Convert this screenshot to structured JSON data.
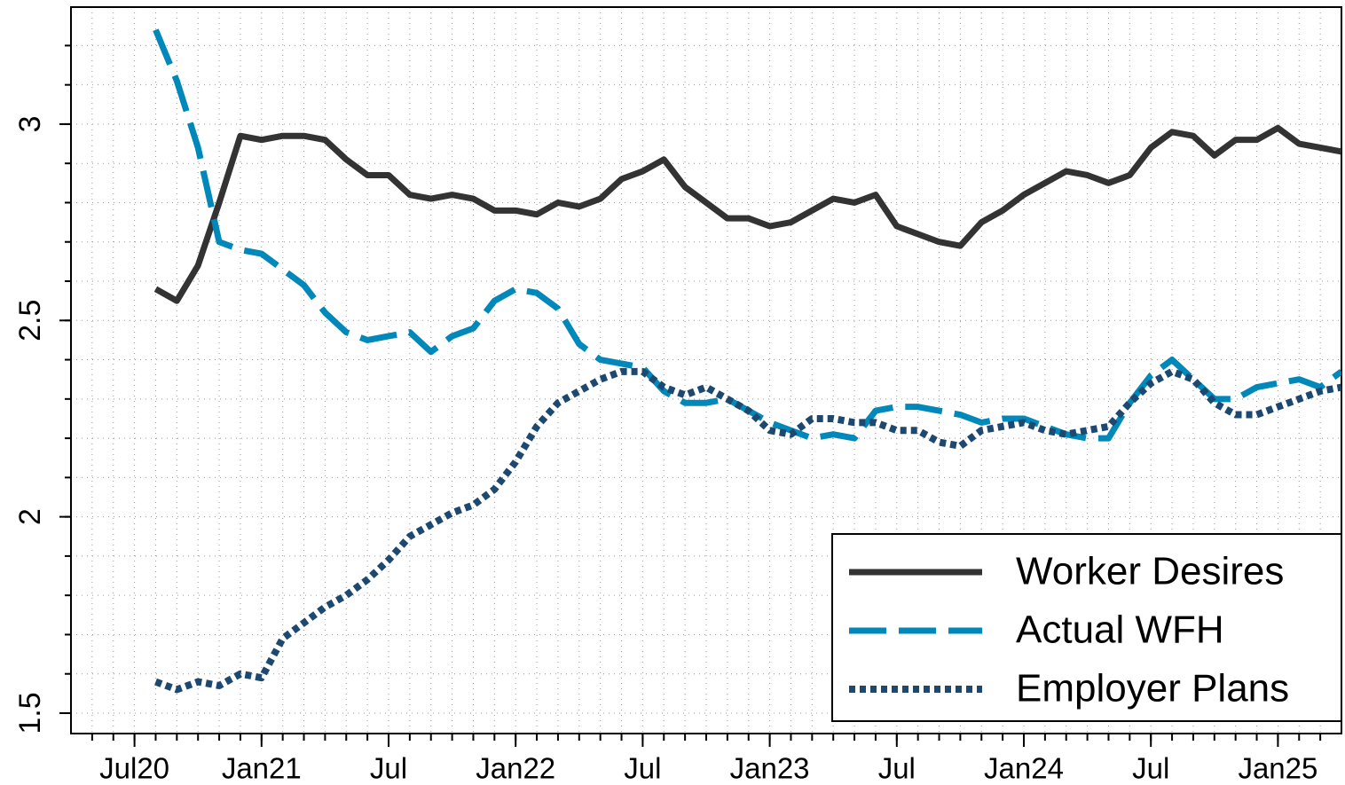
{
  "chart_data": {
    "type": "line",
    "x": [
      "2020-08",
      "2020-09",
      "2020-10",
      "2020-11",
      "2020-12",
      "2021-01",
      "2021-02",
      "2021-03",
      "2021-04",
      "2021-05",
      "2021-06",
      "2021-07",
      "2021-08",
      "2021-09",
      "2021-10",
      "2021-11",
      "2021-12",
      "2022-01",
      "2022-02",
      "2022-03",
      "2022-04",
      "2022-05",
      "2022-06",
      "2022-07",
      "2022-08",
      "2022-09",
      "2022-10",
      "2022-11",
      "2022-12",
      "2023-01",
      "2023-02",
      "2023-03",
      "2023-04",
      "2023-05",
      "2023-06",
      "2023-07",
      "2023-08",
      "2023-09",
      "2023-10",
      "2023-11",
      "2023-12",
      "2024-01",
      "2024-02",
      "2024-03",
      "2024-04",
      "2024-05",
      "2024-06",
      "2024-07",
      "2024-08",
      "2024-09",
      "2024-10",
      "2024-11",
      "2024-12",
      "2025-01",
      "2025-02",
      "2025-03",
      "2025-04"
    ],
    "series": [
      {
        "name": "Worker Desires",
        "color": "#333333",
        "style": "solid",
        "values": [
          2.58,
          2.55,
          2.64,
          2.8,
          2.97,
          2.96,
          2.97,
          2.97,
          2.96,
          2.91,
          2.87,
          2.87,
          2.82,
          2.81,
          2.82,
          2.81,
          2.78,
          2.78,
          2.77,
          2.8,
          2.79,
          2.81,
          2.86,
          2.88,
          2.91,
          2.84,
          2.8,
          2.76,
          2.76,
          2.74,
          2.75,
          2.78,
          2.81,
          2.8,
          2.82,
          2.74,
          2.72,
          2.7,
          2.69,
          2.75,
          2.78,
          2.82,
          2.85,
          2.88,
          2.87,
          2.85,
          2.87,
          2.94,
          2.98,
          2.97,
          2.92,
          2.96,
          2.96,
          2.99,
          2.95,
          2.94,
          2.93
        ]
      },
      {
        "name": "Actual WFH",
        "color": "#0088bb",
        "style": "dashed",
        "values": [
          3.24,
          3.11,
          2.94,
          2.7,
          2.68,
          2.67,
          2.63,
          2.59,
          2.52,
          2.47,
          2.45,
          2.46,
          2.47,
          2.42,
          2.46,
          2.48,
          2.55,
          2.58,
          2.57,
          2.53,
          2.44,
          2.4,
          2.39,
          2.38,
          2.32,
          2.29,
          2.29,
          2.3,
          2.27,
          2.24,
          2.22,
          2.2,
          2.21,
          2.2,
          2.27,
          2.28,
          2.28,
          2.27,
          2.26,
          2.24,
          2.25,
          2.25,
          2.23,
          2.21,
          2.2,
          2.2,
          2.29,
          2.36,
          2.4,
          2.35,
          2.3,
          2.3,
          2.33,
          2.34,
          2.35,
          2.33,
          2.37
        ]
      },
      {
        "name": "Employer Plans",
        "color": "#1d4870",
        "style": "dotted",
        "values": [
          1.58,
          1.56,
          1.58,
          1.57,
          1.6,
          1.59,
          1.69,
          1.73,
          1.77,
          1.8,
          1.84,
          1.89,
          1.95,
          1.98,
          2.01,
          2.03,
          2.07,
          2.14,
          2.23,
          2.29,
          2.32,
          2.35,
          2.37,
          2.37,
          2.33,
          2.31,
          2.33,
          2.3,
          2.27,
          2.22,
          2.21,
          2.25,
          2.25,
          2.24,
          2.24,
          2.22,
          2.22,
          2.19,
          2.18,
          2.22,
          2.23,
          2.24,
          2.22,
          2.21,
          2.22,
          2.23,
          2.29,
          2.34,
          2.37,
          2.35,
          2.29,
          2.26,
          2.26,
          2.28,
          2.3,
          2.32,
          2.33
        ]
      }
    ],
    "xlim": [
      "2020-04",
      "2025-04"
    ],
    "xticks": [
      {
        "value": "2020-07",
        "label": "Jul20"
      },
      {
        "value": "2021-01",
        "label": "Jan21"
      },
      {
        "value": "2021-07",
        "label": "Jul"
      },
      {
        "value": "2022-01",
        "label": "Jan22"
      },
      {
        "value": "2022-07",
        "label": "Jul"
      },
      {
        "value": "2023-01",
        "label": "Jan23"
      },
      {
        "value": "2023-07",
        "label": "Jul"
      },
      {
        "value": "2024-01",
        "label": "Jan24"
      },
      {
        "value": "2024-07",
        "label": "Jul"
      },
      {
        "value": "2025-01",
        "label": "Jan25"
      }
    ],
    "ylim": [
      1.448,
      3.298
    ],
    "yticks": [
      1.5,
      2,
      2.5,
      3
    ],
    "yminorticks": [
      1.5,
      1.6,
      1.7,
      1.8,
      1.9,
      2.0,
      2.1,
      2.2,
      2.3,
      2.4,
      2.5,
      2.6,
      2.7,
      2.8,
      2.9,
      3.0,
      3.1,
      3.2
    ],
    "grid": true,
    "legend": "lower right"
  }
}
